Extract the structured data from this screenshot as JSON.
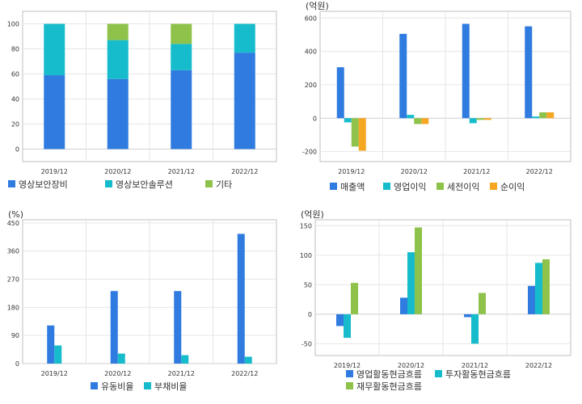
{
  "colors": {
    "blue": "#2f7be0",
    "cyan": "#16bccc",
    "green": "#8ec24a",
    "orange": "#f5a623",
    "grid": "#e6e6e6",
    "axis": "#bfbfbf",
    "text": "#333333"
  },
  "chart_data": [
    {
      "type": "bar",
      "stacked": true,
      "unit_label": "",
      "categories": [
        "2019/12",
        "2020/12",
        "2021/12",
        "2022/12"
      ],
      "series": [
        {
          "name": "영상보안장비",
          "color": "#2f7be0",
          "values": [
            59,
            56,
            63,
            77
          ]
        },
        {
          "name": "영상보안솔루션",
          "color": "#16bccc",
          "values": [
            41,
            31,
            21,
            23
          ]
        },
        {
          "name": "기타",
          "color": "#8ec24a",
          "values": [
            0,
            13,
            16,
            0
          ]
        }
      ],
      "ylim": [
        -10,
        110
      ],
      "yticks": [
        0,
        20,
        40,
        60,
        80,
        100
      ],
      "grid": true,
      "legend": "bottom"
    },
    {
      "type": "bar",
      "stacked": false,
      "unit_label": "(억원)",
      "categories": [
        "2019/12",
        "2020/12",
        "2021/12",
        "2022/12"
      ],
      "series": [
        {
          "name": "매출액",
          "color": "#2f7be0",
          "values": [
            305,
            505,
            565,
            550
          ]
        },
        {
          "name": "영업이익",
          "color": "#16bccc",
          "values": [
            -25,
            20,
            -30,
            10
          ]
        },
        {
          "name": "세전이익",
          "color": "#8ec24a",
          "values": [
            -170,
            -35,
            -10,
            35
          ]
        },
        {
          "name": "순이익",
          "color": "#f5a623",
          "values": [
            -195,
            -35,
            -10,
            35
          ]
        }
      ],
      "ylim": [
        -260,
        640
      ],
      "yticks": [
        -200,
        0,
        200,
        400,
        600
      ],
      "grid": true,
      "legend": "bottom"
    },
    {
      "type": "bar",
      "stacked": false,
      "unit_label": "(%)",
      "categories": [
        "2019/12",
        "2020/12",
        "2021/12",
        "2022/12"
      ],
      "series": [
        {
          "name": "유동비율",
          "color": "#2f7be0",
          "values": [
            122,
            232,
            232,
            415
          ]
        },
        {
          "name": "부채비율",
          "color": "#16bccc",
          "values": [
            58,
            32,
            27,
            22
          ]
        }
      ],
      "ylim": [
        0,
        460
      ],
      "yticks": [
        0,
        90,
        180,
        270,
        360,
        450
      ],
      "grid": true,
      "legend": "bottom"
    },
    {
      "type": "bar",
      "stacked": false,
      "unit_label": "(억원)",
      "categories": [
        "2019/12",
        "2020/12",
        "2021/12",
        "2022/12"
      ],
      "series": [
        {
          "name": "영업활동현금흐름",
          "color": "#2f7be0",
          "values": [
            -20,
            28,
            -5,
            48
          ]
        },
        {
          "name": "투자활동현금흐름",
          "color": "#16bccc",
          "values": [
            -40,
            105,
            -50,
            87
          ]
        },
        {
          "name": "재무활동현금흐름",
          "color": "#8ec24a",
          "values": [
            53,
            147,
            36,
            93
          ]
        }
      ],
      "ylim": [
        -70,
        160
      ],
      "yticks": [
        -50,
        0,
        50,
        100,
        150
      ],
      "grid": true,
      "legend": "bottom"
    }
  ]
}
